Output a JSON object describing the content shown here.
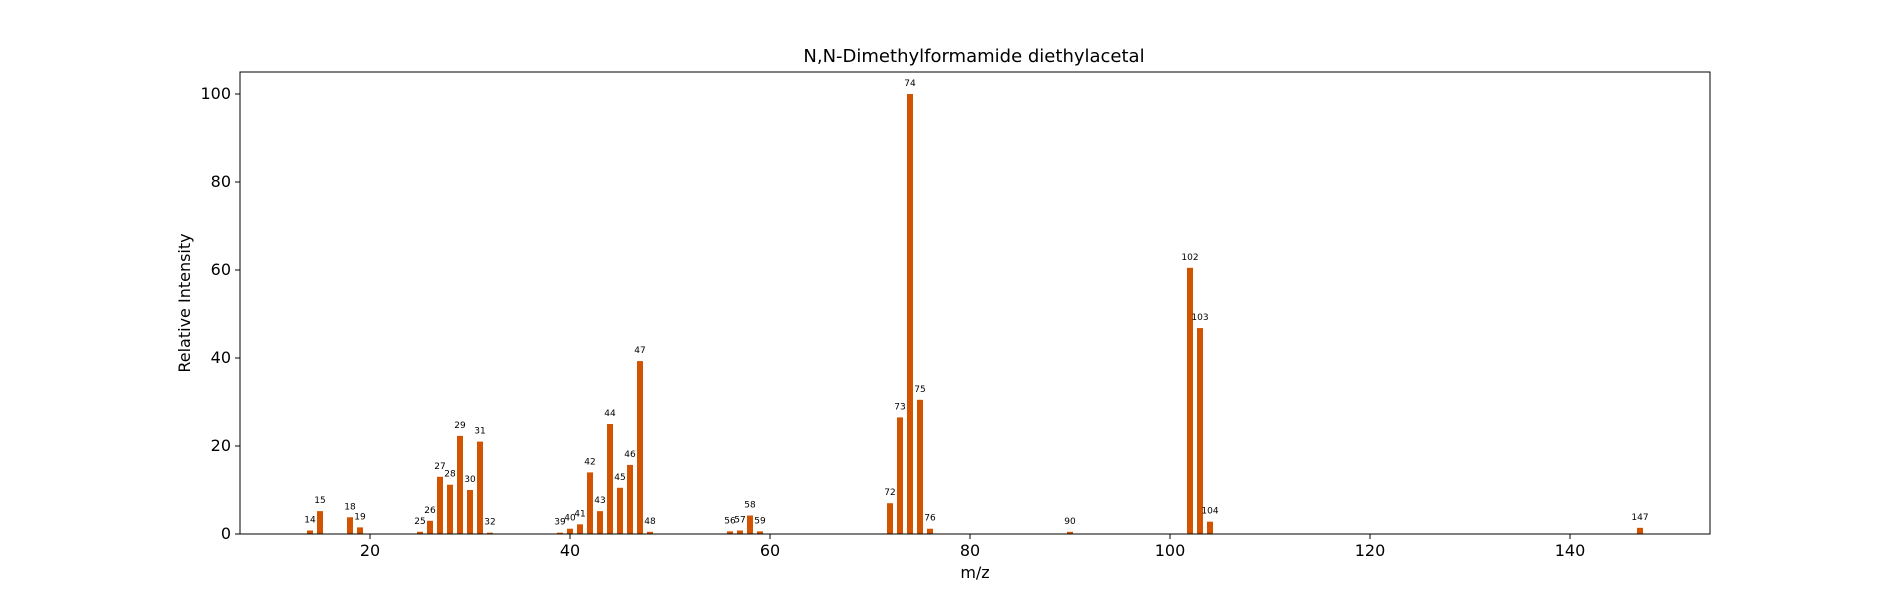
{
  "chart_data": {
    "type": "bar",
    "title": "N,N-Dimethylformamide diethylacetal",
    "xlabel": "m/z",
    "ylabel": "Relative Intensity",
    "xlim": [
      7,
      154
    ],
    "ylim": [
      0,
      105
    ],
    "xticks": [
      20,
      40,
      60,
      80,
      100,
      120,
      140
    ],
    "yticks": [
      0,
      20,
      40,
      60,
      80,
      100
    ],
    "bar_color": "#d35400",
    "grid": false,
    "peaks": [
      {
        "mz": 14,
        "intensity": 0.8
      },
      {
        "mz": 15,
        "intensity": 5.2
      },
      {
        "mz": 18,
        "intensity": 3.8
      },
      {
        "mz": 19,
        "intensity": 1.5
      },
      {
        "mz": 25,
        "intensity": 0.5
      },
      {
        "mz": 26,
        "intensity": 3.0
      },
      {
        "mz": 27,
        "intensity": 13.0
      },
      {
        "mz": 28,
        "intensity": 11.2
      },
      {
        "mz": 29,
        "intensity": 22.3
      },
      {
        "mz": 30,
        "intensity": 10.0
      },
      {
        "mz": 31,
        "intensity": 21.0
      },
      {
        "mz": 32,
        "intensity": 0.3
      },
      {
        "mz": 39,
        "intensity": 0.3
      },
      {
        "mz": 40,
        "intensity": 1.2
      },
      {
        "mz": 41,
        "intensity": 2.2
      },
      {
        "mz": 42,
        "intensity": 14.0
      },
      {
        "mz": 43,
        "intensity": 5.2
      },
      {
        "mz": 44,
        "intensity": 25.0
      },
      {
        "mz": 45,
        "intensity": 10.5
      },
      {
        "mz": 46,
        "intensity": 15.7
      },
      {
        "mz": 47,
        "intensity": 39.3
      },
      {
        "mz": 48,
        "intensity": 0.5
      },
      {
        "mz": 56,
        "intensity": 0.6
      },
      {
        "mz": 57,
        "intensity": 0.8
      },
      {
        "mz": 58,
        "intensity": 4.2
      },
      {
        "mz": 59,
        "intensity": 0.6
      },
      {
        "mz": 72,
        "intensity": 7.0
      },
      {
        "mz": 73,
        "intensity": 26.5
      },
      {
        "mz": 74,
        "intensity": 100.0
      },
      {
        "mz": 75,
        "intensity": 30.5
      },
      {
        "mz": 76,
        "intensity": 1.2
      },
      {
        "mz": 90,
        "intensity": 0.5
      },
      {
        "mz": 102,
        "intensity": 60.5
      },
      {
        "mz": 103,
        "intensity": 46.8
      },
      {
        "mz": 104,
        "intensity": 2.8
      },
      {
        "mz": 147,
        "intensity": 1.4
      }
    ]
  }
}
